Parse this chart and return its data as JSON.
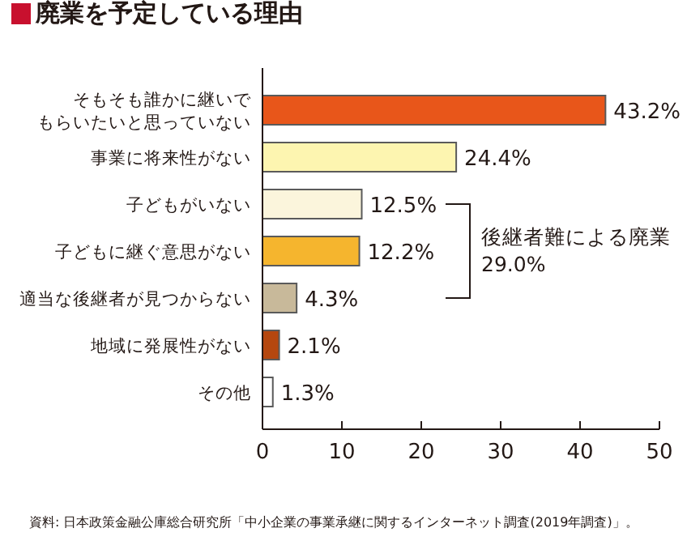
{
  "chart_data": {
    "type": "bar",
    "orientation": "horizontal",
    "title": "廃業を予定している理由",
    "categories": [
      "そもそも誰かに継いでもらいたいと思っていない",
      "事業に将来性がない",
      "子どもがいない",
      "子どもに継ぐ意思がない",
      "適当な後継者が見つからない",
      "地域に発展性がない",
      "その他"
    ],
    "values": [
      43.2,
      24.4,
      12.5,
      12.2,
      4.3,
      2.1,
      1.3
    ],
    "colors": [
      "#e8561a",
      "#fdf5b0",
      "#fbf5dc",
      "#f5b52e",
      "#c8b99a",
      "#b5470f",
      "#ffffff"
    ],
    "value_labels": [
      "43.2%",
      "24.4%",
      "12.5%",
      "12.2%",
      "4.3%",
      "2.1%",
      "1.3%"
    ],
    "xlim": [
      0,
      50
    ],
    "xticks": [
      0,
      10,
      20,
      30,
      40,
      50
    ],
    "grid": false,
    "annotations": [
      "後継者難による廃業\n29.0%",
      "資料: 日本政策金融公庫総合研究所「中小企業の事業承継に関するインターネット調査(2019年調査)」。"
    ]
  }
}
